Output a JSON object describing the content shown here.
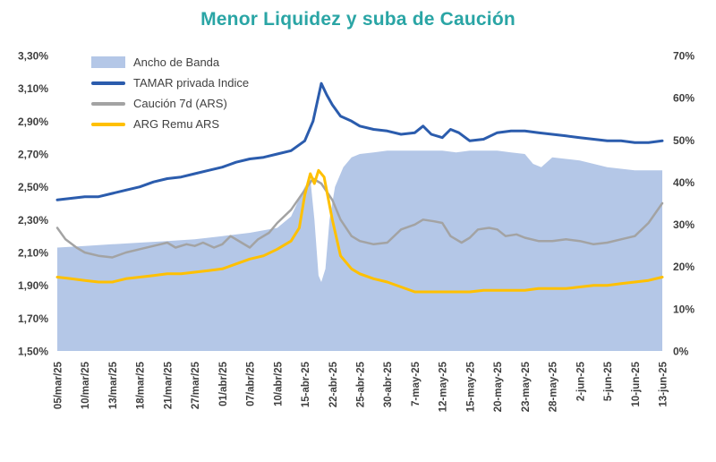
{
  "title": "Menor Liquidez y suba de Caución",
  "colors": {
    "title": "#2AA5A5",
    "band_area": "#B4C7E7",
    "tamar_line": "#2B5CAD",
    "caucion_line": "#A3A3A3",
    "remu_line": "#FFC000",
    "axis_text": "#3F3F3F"
  },
  "legend": [
    {
      "label": "Ancho de Banda",
      "type": "area",
      "color": "#B4C7E7"
    },
    {
      "label": "TAMAR privada Indice",
      "type": "line",
      "color": "#2B5CAD"
    },
    {
      "label": "Caución 7d (ARS)",
      "type": "line",
      "color": "#A3A3A3"
    },
    {
      "label": "ARG Remu ARS",
      "type": "line",
      "color": "#FFC000"
    }
  ],
  "chart_data": {
    "type": "area",
    "title": "Menor Liquidez y suba de Caución",
    "grid": false,
    "legend_position": "top-left-inside",
    "x_tick_labels": [
      "05/mar/25",
      "10/mar/25",
      "13/mar/25",
      "18/mar/25",
      "21/mar/25",
      "27/mar/25",
      "01/abr/25",
      "07/abr/25",
      "10/abr/25",
      "15-abr-25",
      "22-abr-25",
      "25-abr-25",
      "30-abr-25",
      "7-may-25",
      "12-may-25",
      "15-may-25",
      "20-may-25",
      "23-may-25",
      "28-may-25",
      "2-jun-25",
      "5-jun-25",
      "10-jun-25",
      "13-jun-25"
    ],
    "left_axis": {
      "min": 1.5,
      "max": 3.3,
      "ticks": [
        "3,30%",
        "3,10%",
        "2,90%",
        "2,70%",
        "2,50%",
        "2,30%",
        "2,10%",
        "1,90%",
        "1,70%",
        "1,50%"
      ]
    },
    "right_axis": {
      "min": 0,
      "max": 70,
      "ticks": [
        "70%",
        "60%",
        "50%",
        "40%",
        "30%",
        "20%",
        "10%",
        "0%"
      ]
    },
    "series": [
      {
        "name": "Ancho de Banda",
        "type": "area",
        "color": "#B4C7E7",
        "width": 0,
        "points": [
          [
            0,
            2.13
          ],
          [
            1,
            2.14
          ],
          [
            2,
            2.15
          ],
          [
            3,
            2.16
          ],
          [
            4,
            2.17
          ],
          [
            5,
            2.18
          ],
          [
            6,
            2.2
          ],
          [
            7,
            2.22
          ],
          [
            8,
            2.25
          ],
          [
            8.5,
            2.32
          ],
          [
            9,
            2.5
          ],
          [
            9.2,
            2.55
          ],
          [
            9.35,
            2.3
          ],
          [
            9.5,
            1.96
          ],
          [
            9.6,
            1.92
          ],
          [
            9.75,
            2.0
          ],
          [
            9.9,
            2.3
          ],
          [
            10.1,
            2.5
          ],
          [
            10.4,
            2.62
          ],
          [
            10.7,
            2.68
          ],
          [
            11,
            2.7
          ],
          [
            11.5,
            2.71
          ],
          [
            12,
            2.72
          ],
          [
            12.5,
            2.72
          ],
          [
            13,
            2.72
          ],
          [
            13.5,
            2.72
          ],
          [
            14,
            2.72
          ],
          [
            14.5,
            2.71
          ],
          [
            15,
            2.72
          ],
          [
            15.5,
            2.72
          ],
          [
            16,
            2.72
          ],
          [
            16.5,
            2.71
          ],
          [
            17,
            2.7
          ],
          [
            17.3,
            2.64
          ],
          [
            17.6,
            2.62
          ],
          [
            18,
            2.68
          ],
          [
            18.5,
            2.67
          ],
          [
            19,
            2.66
          ],
          [
            19.5,
            2.64
          ],
          [
            20,
            2.62
          ],
          [
            20.5,
            2.61
          ],
          [
            21,
            2.6
          ],
          [
            21.5,
            2.6
          ],
          [
            22,
            2.6
          ]
        ]
      },
      {
        "name": "TAMAR privada Indice",
        "type": "line",
        "color": "#2B5CAD",
        "width": 3,
        "points": [
          [
            0,
            2.42
          ],
          [
            0.5,
            2.43
          ],
          [
            1,
            2.44
          ],
          [
            1.5,
            2.44
          ],
          [
            2,
            2.46
          ],
          [
            2.5,
            2.48
          ],
          [
            3,
            2.5
          ],
          [
            3.5,
            2.53
          ],
          [
            4,
            2.55
          ],
          [
            4.5,
            2.56
          ],
          [
            5,
            2.58
          ],
          [
            5.5,
            2.6
          ],
          [
            6,
            2.62
          ],
          [
            6.5,
            2.65
          ],
          [
            7,
            2.67
          ],
          [
            7.5,
            2.68
          ],
          [
            8,
            2.7
          ],
          [
            8.5,
            2.72
          ],
          [
            9,
            2.78
          ],
          [
            9.3,
            2.9
          ],
          [
            9.6,
            3.13
          ],
          [
            9.8,
            3.06
          ],
          [
            10,
            3.0
          ],
          [
            10.3,
            2.93
          ],
          [
            10.7,
            2.9
          ],
          [
            11,
            2.87
          ],
          [
            11.5,
            2.85
          ],
          [
            12,
            2.84
          ],
          [
            12.5,
            2.82
          ],
          [
            13,
            2.83
          ],
          [
            13.3,
            2.87
          ],
          [
            13.6,
            2.82
          ],
          [
            14,
            2.8
          ],
          [
            14.3,
            2.85
          ],
          [
            14.6,
            2.83
          ],
          [
            15,
            2.78
          ],
          [
            15.5,
            2.79
          ],
          [
            16,
            2.83
          ],
          [
            16.5,
            2.84
          ],
          [
            17,
            2.84
          ],
          [
            17.5,
            2.83
          ],
          [
            18,
            2.82
          ],
          [
            18.5,
            2.81
          ],
          [
            19,
            2.8
          ],
          [
            19.5,
            2.79
          ],
          [
            20,
            2.78
          ],
          [
            20.5,
            2.78
          ],
          [
            21,
            2.77
          ],
          [
            21.5,
            2.77
          ],
          [
            22,
            2.78
          ]
        ]
      },
      {
        "name": "Caución 7d (ARS)",
        "type": "line",
        "color": "#A3A3A3",
        "width": 2.5,
        "points": [
          [
            0,
            2.25
          ],
          [
            0.3,
            2.18
          ],
          [
            0.7,
            2.13
          ],
          [
            1,
            2.1
          ],
          [
            1.5,
            2.08
          ],
          [
            2,
            2.07
          ],
          [
            2.5,
            2.1
          ],
          [
            3,
            2.12
          ],
          [
            3.5,
            2.14
          ],
          [
            4,
            2.16
          ],
          [
            4.3,
            2.13
          ],
          [
            4.7,
            2.15
          ],
          [
            5,
            2.14
          ],
          [
            5.3,
            2.16
          ],
          [
            5.7,
            2.13
          ],
          [
            6,
            2.15
          ],
          [
            6.3,
            2.2
          ],
          [
            6.7,
            2.16
          ],
          [
            7,
            2.13
          ],
          [
            7.3,
            2.18
          ],
          [
            7.7,
            2.22
          ],
          [
            8,
            2.28
          ],
          [
            8.5,
            2.36
          ],
          [
            9,
            2.48
          ],
          [
            9.3,
            2.55
          ],
          [
            9.6,
            2.52
          ],
          [
            10,
            2.42
          ],
          [
            10.3,
            2.3
          ],
          [
            10.7,
            2.2
          ],
          [
            11,
            2.17
          ],
          [
            11.5,
            2.15
          ],
          [
            12,
            2.16
          ],
          [
            12.5,
            2.24
          ],
          [
            13,
            2.27
          ],
          [
            13.3,
            2.3
          ],
          [
            13.7,
            2.29
          ],
          [
            14,
            2.28
          ],
          [
            14.3,
            2.2
          ],
          [
            14.7,
            2.16
          ],
          [
            15,
            2.19
          ],
          [
            15.3,
            2.24
          ],
          [
            15.7,
            2.25
          ],
          [
            16,
            2.24
          ],
          [
            16.3,
            2.2
          ],
          [
            16.7,
            2.21
          ],
          [
            17,
            2.19
          ],
          [
            17.5,
            2.17
          ],
          [
            18,
            2.17
          ],
          [
            18.5,
            2.18
          ],
          [
            19,
            2.17
          ],
          [
            19.5,
            2.15
          ],
          [
            20,
            2.16
          ],
          [
            20.5,
            2.18
          ],
          [
            21,
            2.2
          ],
          [
            21.5,
            2.28
          ],
          [
            22,
            2.4
          ]
        ]
      },
      {
        "name": "ARG Remu ARS",
        "type": "line",
        "color": "#FFC000",
        "width": 3,
        "points": [
          [
            0,
            1.95
          ],
          [
            0.5,
            1.94
          ],
          [
            1,
            1.93
          ],
          [
            1.5,
            1.92
          ],
          [
            2,
            1.92
          ],
          [
            2.5,
            1.94
          ],
          [
            3,
            1.95
          ],
          [
            3.5,
            1.96
          ],
          [
            4,
            1.97
          ],
          [
            4.5,
            1.97
          ],
          [
            5,
            1.98
          ],
          [
            5.5,
            1.99
          ],
          [
            6,
            2.0
          ],
          [
            6.5,
            2.03
          ],
          [
            7,
            2.06
          ],
          [
            7.5,
            2.08
          ],
          [
            8,
            2.12
          ],
          [
            8.5,
            2.17
          ],
          [
            8.8,
            2.25
          ],
          [
            9,
            2.45
          ],
          [
            9.2,
            2.58
          ],
          [
            9.35,
            2.52
          ],
          [
            9.5,
            2.6
          ],
          [
            9.7,
            2.56
          ],
          [
            10,
            2.3
          ],
          [
            10.3,
            2.08
          ],
          [
            10.7,
            2.0
          ],
          [
            11,
            1.97
          ],
          [
            11.5,
            1.94
          ],
          [
            12,
            1.92
          ],
          [
            12.5,
            1.89
          ],
          [
            13,
            1.86
          ],
          [
            13.5,
            1.86
          ],
          [
            14,
            1.86
          ],
          [
            14.5,
            1.86
          ],
          [
            15,
            1.86
          ],
          [
            15.5,
            1.87
          ],
          [
            16,
            1.87
          ],
          [
            16.5,
            1.87
          ],
          [
            17,
            1.87
          ],
          [
            17.5,
            1.88
          ],
          [
            18,
            1.88
          ],
          [
            18.5,
            1.88
          ],
          [
            19,
            1.89
          ],
          [
            19.5,
            1.9
          ],
          [
            20,
            1.9
          ],
          [
            20.5,
            1.91
          ],
          [
            21,
            1.92
          ],
          [
            21.5,
            1.93
          ],
          [
            22,
            1.95
          ]
        ]
      }
    ]
  }
}
